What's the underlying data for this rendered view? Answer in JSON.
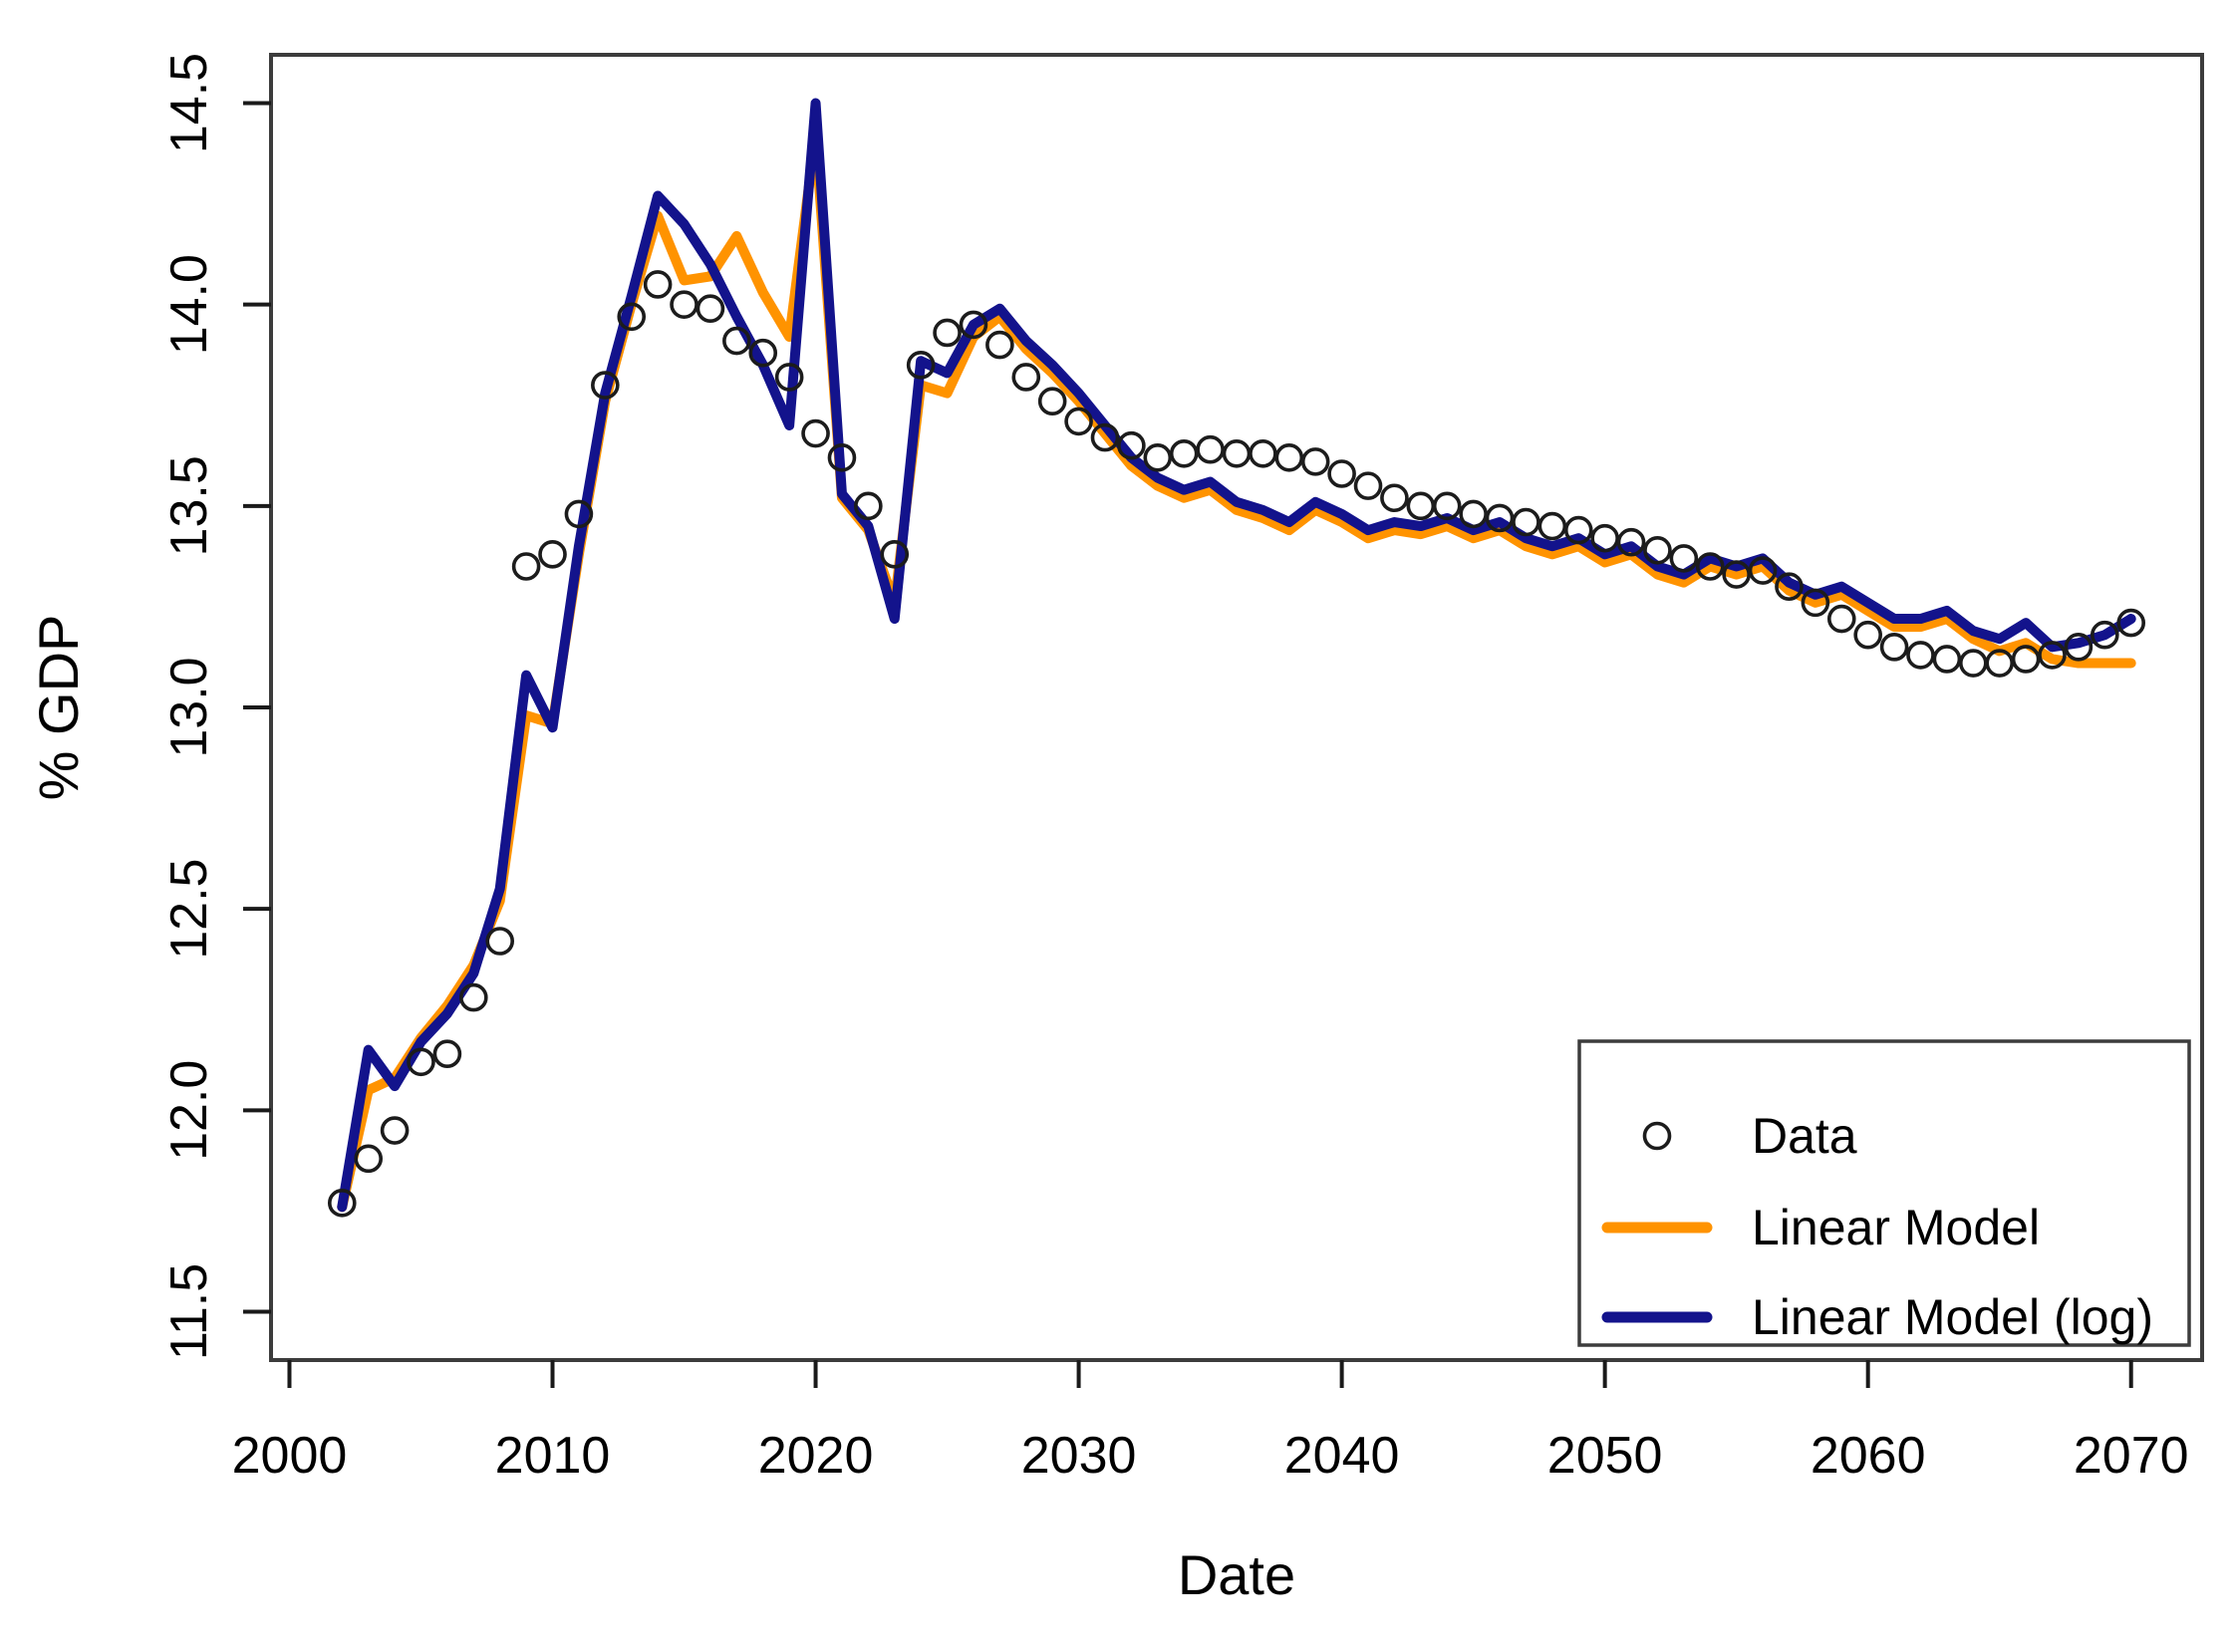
{
  "chart_data": {
    "type": "line",
    "title": "",
    "xlabel": "Date",
    "ylabel": "% GDP",
    "grid": false,
    "legend_position": "bottom-right",
    "xlim": [
      2000,
      2070
    ],
    "ylim": [
      11.5,
      14.5
    ],
    "x_ticks": [
      {
        "value": 2000,
        "label": "2000"
      },
      {
        "value": 2010,
        "label": "2010"
      },
      {
        "value": 2020,
        "label": "2020"
      },
      {
        "value": 2030,
        "label": "2030"
      },
      {
        "value": 2040,
        "label": "2040"
      },
      {
        "value": 2050,
        "label": "2050"
      },
      {
        "value": 2060,
        "label": "2060"
      },
      {
        "value": 2070,
        "label": "2070"
      }
    ],
    "y_ticks": [
      {
        "value": 11.5,
        "label": "11.5"
      },
      {
        "value": 12.0,
        "label": "12.0"
      },
      {
        "value": 12.5,
        "label": "12.5"
      },
      {
        "value": 13.0,
        "label": "13.0"
      },
      {
        "value": 13.5,
        "label": "13.5"
      },
      {
        "value": 14.0,
        "label": "14.0"
      },
      {
        "value": 14.5,
        "label": "14.5"
      }
    ],
    "x": [
      2002,
      2003,
      2004,
      2005,
      2006,
      2007,
      2008,
      2009,
      2010,
      2011,
      2012,
      2013,
      2014,
      2015,
      2016,
      2017,
      2018,
      2019,
      2020,
      2021,
      2022,
      2023,
      2024,
      2025,
      2026,
      2027,
      2028,
      2029,
      2030,
      2031,
      2032,
      2033,
      2034,
      2035,
      2036,
      2037,
      2038,
      2039,
      2040,
      2041,
      2042,
      2043,
      2044,
      2045,
      2046,
      2047,
      2048,
      2049,
      2050,
      2051,
      2052,
      2053,
      2054,
      2055,
      2056,
      2057,
      2058,
      2059,
      2060,
      2061,
      2062,
      2063,
      2064,
      2065,
      2066,
      2067,
      2068,
      2069,
      2070
    ],
    "series": [
      {
        "name": "Data",
        "type": "points",
        "marker": "open-circle",
        "color": "#1c1c1c",
        "values": [
          11.77,
          11.88,
          11.95,
          12.12,
          12.14,
          12.28,
          12.42,
          13.35,
          13.38,
          13.48,
          13.8,
          13.97,
          14.05,
          14.0,
          13.99,
          13.91,
          13.88,
          13.82,
          13.68,
          13.62,
          13.5,
          13.38,
          13.85,
          13.93,
          13.95,
          13.9,
          13.82,
          13.76,
          13.71,
          13.67,
          13.65,
          13.62,
          13.63,
          13.64,
          13.63,
          13.63,
          13.62,
          13.61,
          13.58,
          13.55,
          13.52,
          13.5,
          13.5,
          13.48,
          13.47,
          13.46,
          13.45,
          13.44,
          13.42,
          13.41,
          13.39,
          13.37,
          13.35,
          13.33,
          13.34,
          13.3,
          13.26,
          13.22,
          13.18,
          13.15,
          13.13,
          13.12,
          13.11,
          13.11,
          13.12,
          13.13,
          13.15,
          13.18,
          13.21
        ]
      },
      {
        "name": "Linear Model",
        "type": "line",
        "color": "#ff9300",
        "values": [
          11.76,
          12.05,
          12.08,
          12.18,
          12.26,
          12.36,
          12.52,
          12.98,
          12.96,
          13.38,
          13.76,
          14.0,
          14.22,
          14.06,
          14.07,
          14.17,
          14.03,
          13.92,
          14.42,
          13.52,
          13.44,
          13.26,
          13.8,
          13.78,
          13.92,
          13.97,
          13.89,
          13.83,
          13.76,
          13.68,
          13.6,
          13.55,
          13.52,
          13.54,
          13.49,
          13.47,
          13.44,
          13.49,
          13.46,
          13.42,
          13.44,
          13.43,
          13.45,
          13.42,
          13.44,
          13.4,
          13.38,
          13.4,
          13.36,
          13.38,
          13.33,
          13.31,
          13.35,
          13.33,
          13.35,
          13.29,
          13.26,
          13.28,
          13.24,
          13.2,
          13.2,
          13.22,
          13.17,
          13.14,
          13.16,
          13.12,
          13.11,
          13.11,
          13.11
        ]
      },
      {
        "name": "Linear Model (log)",
        "type": "line",
        "color": "#13138c",
        "values": [
          11.76,
          12.15,
          12.06,
          12.17,
          12.24,
          12.34,
          12.55,
          13.08,
          12.95,
          13.4,
          13.78,
          14.02,
          14.27,
          14.2,
          14.1,
          13.97,
          13.85,
          13.7,
          14.5,
          13.53,
          13.45,
          13.22,
          13.86,
          13.83,
          13.95,
          13.99,
          13.91,
          13.85,
          13.78,
          13.7,
          13.62,
          13.57,
          13.54,
          13.56,
          13.51,
          13.49,
          13.46,
          13.51,
          13.48,
          13.44,
          13.46,
          13.45,
          13.47,
          13.44,
          13.46,
          13.42,
          13.4,
          13.42,
          13.38,
          13.4,
          13.35,
          13.33,
          13.37,
          13.35,
          13.37,
          13.31,
          13.28,
          13.3,
          13.26,
          13.22,
          13.22,
          13.24,
          13.19,
          13.17,
          13.21,
          13.15,
          13.16,
          13.18,
          13.22
        ]
      }
    ]
  },
  "legend": {
    "items": [
      {
        "label": "Data"
      },
      {
        "label": "Linear Model"
      },
      {
        "label": "Linear Model (log)"
      }
    ]
  }
}
